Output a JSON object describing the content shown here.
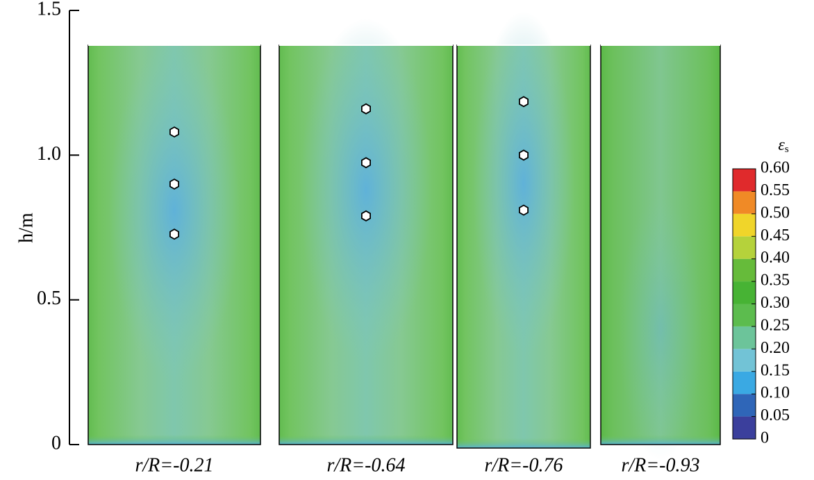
{
  "chart_data": {
    "type": "contour",
    "y_label": "h/m",
    "ylim": [
      0,
      1.5
    ],
    "yticks": [
      0,
      0.5,
      {
        "value": 1,
        "label": "1.0"
      },
      1.5
    ],
    "field_top": 1.38,
    "panels": [
      {
        "label": "r/R=-0.21",
        "marker_h": [
          1.08,
          0.9,
          0.727
        ]
      },
      {
        "label": "r/R=-0.64",
        "marker_h": [
          1.16,
          0.974,
          0.79
        ]
      },
      {
        "label": "r/R=-0.76",
        "marker_h": [
          1.185,
          1.0,
          0.81
        ]
      },
      {
        "label": "r/R=-0.93",
        "marker_h": []
      }
    ],
    "colorbar": {
      "title": "ε",
      "title_sub": "s",
      "lim": [
        0,
        0.6
      ],
      "ticks": [
        0,
        0.05,
        {
          "value": 0.1,
          "label": "0.10"
        },
        0.15,
        {
          "value": 0.2,
          "label": "0.20"
        },
        0.25,
        {
          "value": 0.3,
          "label": "0.30"
        },
        0.35,
        {
          "value": 0.4,
          "label": "0.40"
        },
        0.45,
        {
          "value": 0.5,
          "label": "0.50"
        },
        0.55,
        {
          "value": 0.6,
          "label": "0.60"
        }
      ],
      "colors": [
        "#3b3f9c",
        "#2f66b8",
        "#3aa9e3",
        "#72c3d6",
        "#6cc49a",
        "#5cbc4e",
        "#47b334",
        "#66bb3a",
        "#b5d23b",
        "#f0d52a",
        "#f08a26",
        "#e02a2c"
      ]
    }
  }
}
